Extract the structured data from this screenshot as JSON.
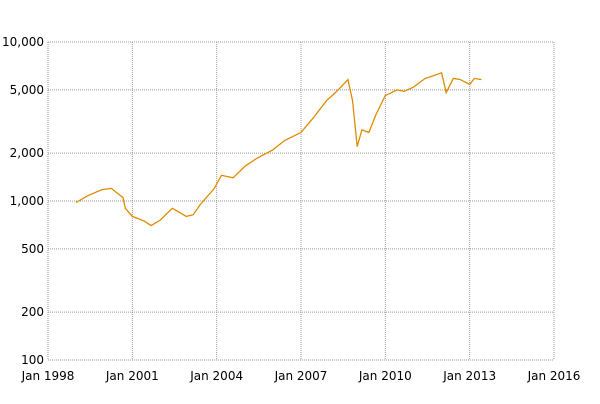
{
  "chart_data": {
    "type": "line",
    "x": [
      "1999-01",
      "1999-06",
      "1999-12",
      "2000-04",
      "2000-09",
      "2000-10",
      "2001-01",
      "2001-06",
      "2001-09",
      "2002-01",
      "2002-06",
      "2002-09",
      "2002-12",
      "2003-03",
      "2003-06",
      "2003-12",
      "2004-03",
      "2004-08",
      "2005-01",
      "2005-06",
      "2006-01",
      "2006-06",
      "2007-01",
      "2007-06",
      "2007-12",
      "2008-03",
      "2008-06",
      "2008-09",
      "2008-11",
      "2009-01",
      "2009-03",
      "2009-06",
      "2009-09",
      "2010-01",
      "2010-06",
      "2010-09",
      "2011-01",
      "2011-06",
      "2011-09",
      "2012-01",
      "2012-03",
      "2012-06",
      "2012-09",
      "2013-01",
      "2013-03",
      "2013-06"
    ],
    "series": [
      {
        "color": "#e08a00",
        "values": [
          980,
          1080,
          1180,
          1200,
          1050,
          900,
          800,
          750,
          700,
          760,
          900,
          850,
          800,
          820,
          950,
          1200,
          1450,
          1400,
          1650,
          1850,
          2100,
          2400,
          2700,
          3300,
          4300,
          4700,
          5200,
          5800,
          4300,
          2200,
          2800,
          2700,
          3500,
          4600,
          5000,
          4900,
          5200,
          5900,
          6100,
          6400,
          4800,
          5900,
          5800,
          5400,
          5900,
          5800
        ]
      }
    ],
    "xlim": [
      "1998-01",
      "2016-01"
    ],
    "xticks": [
      {
        "value": "1998-01",
        "label": "Jan 1998"
      },
      {
        "value": "2001-01",
        "label": "Jan 2001"
      },
      {
        "value": "2004-01",
        "label": "Jan 2004"
      },
      {
        "value": "2007-01",
        "label": "Jan 2007"
      },
      {
        "value": "2010-01",
        "label": "Jan 2010"
      },
      {
        "value": "2013-01",
        "label": "Jan 2013"
      },
      {
        "value": "2016-01",
        "label": "Jan 2016"
      }
    ],
    "ylim": [
      100,
      10000
    ],
    "yticks": [
      100,
      200,
      500,
      {
        "value": 1000,
        "label": "1,000"
      },
      {
        "value": 2000,
        "label": "2,000"
      },
      {
        "value": 5000,
        "label": "5,000"
      },
      {
        "value": 10000,
        "label": "10,000"
      }
    ],
    "log_y": true,
    "grid": true
  }
}
